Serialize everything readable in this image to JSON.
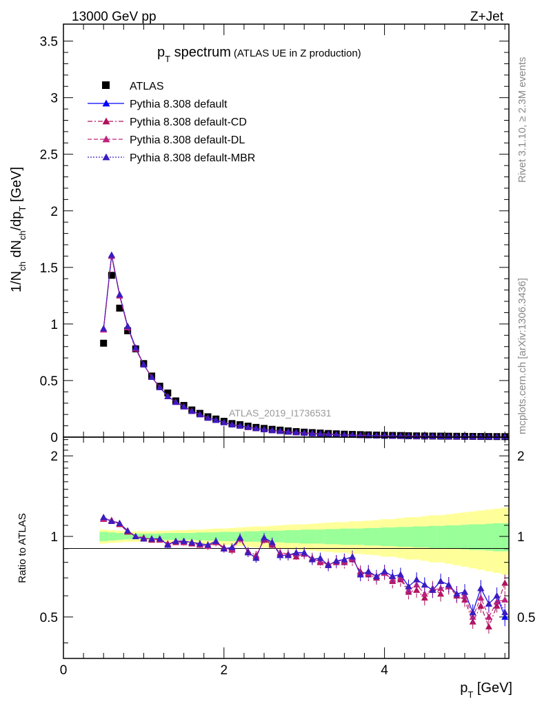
{
  "header": {
    "energy_label": "13000 GeV pp",
    "process_label": "Z+Jet"
  },
  "side_labels": {
    "rivet": "Rivet 3.1.10, ≥ 2.3M events",
    "mcplots": "mcplots.cern.ch [arXiv:1306.3436]"
  },
  "chart_data": [
    {
      "type": "scatter",
      "title_main": "p",
      "title_sub": "T",
      "title_rest": " spectrum",
      "subtitle": "(ATLAS UE in Z production)",
      "watermark": "ATLAS_2019_I1736531",
      "ylabel": "1/N_ch dN_ch/dp_T [GeV]",
      "xlim": [
        0,
        5.55
      ],
      "ylim": [
        0,
        3.65
      ],
      "x_ticks": [
        0,
        2,
        4
      ],
      "y_ticks": [
        0,
        0.5,
        1,
        1.5,
        2,
        2.5,
        3,
        3.5
      ],
      "y_tick_labels": [
        "0",
        "0.5",
        "1",
        "1.5",
        "2",
        "2.5",
        "3",
        "3.5"
      ],
      "legend_position": "top-left",
      "x": [
        0.5,
        0.6,
        0.7,
        0.8,
        0.9,
        1.0,
        1.1,
        1.2,
        1.3,
        1.4,
        1.5,
        1.6,
        1.7,
        1.8,
        1.9,
        2.0,
        2.1,
        2.2,
        2.3,
        2.4,
        2.5,
        2.6,
        2.7,
        2.8,
        2.9,
        3.0,
        3.1,
        3.2,
        3.3,
        3.4,
        3.5,
        3.6,
        3.7,
        3.8,
        3.9,
        4.0,
        4.1,
        4.2,
        4.3,
        4.4,
        4.5,
        4.6,
        4.7,
        4.8,
        4.9,
        5.0,
        5.1,
        5.2,
        5.3,
        5.4,
        5.5
      ],
      "series": [
        {
          "name": "ATLAS",
          "color": "#000000",
          "marker": "square",
          "values": [
            0.83,
            1.43,
            1.14,
            0.94,
            0.78,
            0.65,
            0.54,
            0.45,
            0.39,
            0.32,
            0.28,
            0.24,
            0.21,
            0.18,
            0.16,
            0.14,
            0.12,
            0.11,
            0.097,
            0.086,
            0.077,
            0.069,
            0.062,
            0.055,
            0.049,
            0.044,
            0.04,
            0.036,
            0.032,
            0.029,
            0.026,
            0.024,
            0.022,
            0.02,
            0.018,
            0.016,
            0.015,
            0.014,
            0.012,
            0.011,
            0.01,
            0.0095,
            0.0088,
            0.0081,
            0.0074,
            0.0068,
            0.0063,
            0.0058,
            0.0053,
            0.0049,
            0.0045
          ]
        },
        {
          "name": "Pythia 8.308 default",
          "color": "#0000ff",
          "marker": "triangle",
          "line": "solid",
          "values": [
            0.96,
            1.61,
            1.26,
            0.98,
            0.79,
            0.64,
            0.53,
            0.44,
            0.36,
            0.31,
            0.27,
            0.23,
            0.2,
            0.17,
            0.15,
            0.13,
            0.11,
            0.1,
            0.088,
            0.078,
            0.068,
            0.06,
            0.053,
            0.047,
            0.042,
            0.037,
            0.033,
            0.029,
            0.026,
            0.023,
            0.02,
            0.018,
            0.016,
            0.015,
            0.013,
            0.012,
            0.011,
            0.0099,
            0.0089,
            0.008,
            0.0072,
            0.0066,
            0.0059,
            0.0054,
            0.0049,
            0.0044,
            0.004,
            0.0036,
            0.0033,
            0.003,
            0.0027
          ]
        },
        {
          "name": "Pythia 8.308 default-CD",
          "color": "#b0105c",
          "marker": "triangle",
          "line": "dash-dot",
          "values": [
            0.95,
            1.6,
            1.25,
            0.97,
            0.78,
            0.64,
            0.53,
            0.44,
            0.36,
            0.31,
            0.27,
            0.23,
            0.2,
            0.17,
            0.15,
            0.13,
            0.11,
            0.1,
            0.087,
            0.077,
            0.068,
            0.059,
            0.053,
            0.047,
            0.041,
            0.037,
            0.033,
            0.029,
            0.026,
            0.023,
            0.02,
            0.018,
            0.016,
            0.015,
            0.013,
            0.012,
            0.011,
            0.0098,
            0.0088,
            0.0079,
            0.0071,
            0.0065,
            0.0059,
            0.0053,
            0.0048,
            0.0043,
            0.004,
            0.0036,
            0.0032,
            0.0029,
            0.0027
          ]
        },
        {
          "name": "Pythia 8.308 default-DL",
          "color": "#c0207a",
          "marker": "triangle",
          "line": "dashed",
          "values": [
            0.95,
            1.6,
            1.25,
            0.97,
            0.78,
            0.64,
            0.53,
            0.44,
            0.36,
            0.31,
            0.27,
            0.23,
            0.2,
            0.17,
            0.15,
            0.13,
            0.11,
            0.1,
            0.087,
            0.077,
            0.068,
            0.059,
            0.053,
            0.047,
            0.041,
            0.037,
            0.033,
            0.029,
            0.026,
            0.023,
            0.02,
            0.018,
            0.016,
            0.015,
            0.013,
            0.012,
            0.011,
            0.0098,
            0.0088,
            0.0079,
            0.0071,
            0.0065,
            0.0059,
            0.0053,
            0.0048,
            0.0043,
            0.004,
            0.0036,
            0.0032,
            0.0029,
            0.0027
          ]
        },
        {
          "name": "Pythia 8.308 default-MBR",
          "color": "#3b1cc0",
          "marker": "triangle",
          "line": "dotted",
          "values": [
            0.96,
            1.61,
            1.26,
            0.98,
            0.79,
            0.64,
            0.53,
            0.44,
            0.36,
            0.31,
            0.27,
            0.23,
            0.2,
            0.17,
            0.15,
            0.13,
            0.11,
            0.1,
            0.088,
            0.078,
            0.068,
            0.06,
            0.053,
            0.047,
            0.042,
            0.037,
            0.033,
            0.029,
            0.026,
            0.023,
            0.02,
            0.018,
            0.016,
            0.015,
            0.013,
            0.012,
            0.011,
            0.0099,
            0.0089,
            0.008,
            0.0072,
            0.0066,
            0.0059,
            0.0054,
            0.0049,
            0.0044,
            0.004,
            0.0036,
            0.0033,
            0.003,
            0.0027
          ]
        }
      ]
    },
    {
      "type": "scatter",
      "ylabel": "Ratio to ATLAS",
      "xlabel_main": "p",
      "xlabel_sub": "T",
      "xlabel_rest": " [GeV]",
      "xlim": [
        0,
        5.55
      ],
      "ylim": [
        0.35,
        2.35
      ],
      "log_y": true,
      "x_ticks": [
        0,
        2,
        4
      ],
      "x_tick_labels": [
        "0",
        "2",
        "4"
      ],
      "y_ticks": [
        0.5,
        1,
        2
      ],
      "y_tick_labels": [
        "0.5",
        "1",
        "2"
      ],
      "reference_line": 1,
      "x": [
        0.5,
        0.6,
        0.7,
        0.8,
        0.9,
        1.0,
        1.1,
        1.2,
        1.3,
        1.4,
        1.5,
        1.6,
        1.7,
        1.8,
        1.9,
        2.0,
        2.1,
        2.2,
        2.3,
        2.4,
        2.5,
        2.6,
        2.7,
        2.8,
        2.9,
        3.0,
        3.1,
        3.2,
        3.3,
        3.4,
        3.5,
        3.6,
        3.7,
        3.8,
        3.9,
        4.0,
        4.1,
        4.2,
        4.3,
        4.4,
        4.5,
        4.6,
        4.7,
        4.8,
        4.9,
        5.0,
        5.1,
        5.2,
        5.3,
        5.4,
        5.5
      ],
      "band_inner": [
        0.04,
        0.035,
        0.03,
        0.025,
        0.025,
        0.025,
        0.025,
        0.025,
        0.03,
        0.03,
        0.03,
        0.03,
        0.035,
        0.035,
        0.035,
        0.04,
        0.04,
        0.04,
        0.045,
        0.045,
        0.05,
        0.05,
        0.05,
        0.055,
        0.055,
        0.06,
        0.06,
        0.06,
        0.065,
        0.065,
        0.07,
        0.07,
        0.07,
        0.075,
        0.075,
        0.08,
        0.08,
        0.085,
        0.085,
        0.09,
        0.09,
        0.095,
        0.095,
        0.1,
        0.1,
        0.105,
        0.11,
        0.11,
        0.115,
        0.12,
        0.12
      ],
      "band_outer": [
        0.06,
        0.055,
        0.05,
        0.045,
        0.045,
        0.045,
        0.045,
        0.05,
        0.05,
        0.055,
        0.055,
        0.06,
        0.06,
        0.065,
        0.07,
        0.07,
        0.075,
        0.08,
        0.085,
        0.09,
        0.09,
        0.095,
        0.1,
        0.105,
        0.11,
        0.11,
        0.115,
        0.12,
        0.125,
        0.13,
        0.13,
        0.14,
        0.14,
        0.145,
        0.15,
        0.16,
        0.16,
        0.17,
        0.18,
        0.18,
        0.19,
        0.2,
        0.2,
        0.21,
        0.22,
        0.23,
        0.24,
        0.25,
        0.26,
        0.27,
        0.28
      ],
      "series": [
        {
          "name": "Pythia 8.308 default",
          "color": "#0000ff",
          "line": "solid",
          "values": [
            1.17,
            1.14,
            1.12,
            1.05,
            1.0,
            0.98,
            0.98,
            0.98,
            0.93,
            0.96,
            0.96,
            0.95,
            0.94,
            0.93,
            0.96,
            0.9,
            0.91,
            0.99,
            0.87,
            0.83,
            0.99,
            0.95,
            0.85,
            0.85,
            0.87,
            0.87,
            0.82,
            0.83,
            0.78,
            0.81,
            0.82,
            0.84,
            0.72,
            0.74,
            0.71,
            0.74,
            0.71,
            0.72,
            0.65,
            0.69,
            0.66,
            0.63,
            0.68,
            0.66,
            0.61,
            0.62,
            0.52,
            0.64,
            0.56,
            0.6,
            0.5
          ]
        },
        {
          "name": "Pythia 8.308 default-CD",
          "color": "#b0105c",
          "line": "dash-dot",
          "values": [
            1.16,
            1.15,
            1.11,
            1.04,
            1.0,
            0.99,
            0.97,
            0.98,
            0.94,
            0.95,
            0.95,
            0.94,
            0.93,
            0.92,
            0.95,
            0.91,
            0.89,
            0.98,
            0.88,
            0.85,
            0.97,
            0.93,
            0.87,
            0.86,
            0.84,
            0.86,
            0.83,
            0.8,
            0.79,
            0.8,
            0.8,
            0.82,
            0.74,
            0.72,
            0.7,
            0.73,
            0.68,
            0.69,
            0.62,
            0.63,
            0.59,
            0.64,
            0.61,
            0.65,
            0.6,
            0.58,
            0.48,
            0.55,
            0.46,
            0.55,
            0.67
          ]
        },
        {
          "name": "Pythia 8.308 default-DL",
          "color": "#c0207a",
          "line": "dashed",
          "values": [
            1.16,
            1.15,
            1.12,
            1.05,
            1.0,
            0.98,
            0.98,
            0.97,
            0.94,
            0.96,
            0.95,
            0.95,
            0.93,
            0.92,
            0.95,
            0.9,
            0.9,
            0.98,
            0.87,
            0.84,
            0.98,
            0.94,
            0.86,
            0.85,
            0.86,
            0.86,
            0.82,
            0.81,
            0.78,
            0.81,
            0.81,
            0.83,
            0.73,
            0.73,
            0.71,
            0.73,
            0.69,
            0.7,
            0.63,
            0.66,
            0.61,
            0.63,
            0.64,
            0.65,
            0.61,
            0.6,
            0.5,
            0.59,
            0.5,
            0.57,
            0.58
          ]
        },
        {
          "name": "Pythia 8.308 default-MBR",
          "color": "#3b1cc0",
          "line": "dotted",
          "values": [
            1.18,
            1.14,
            1.12,
            1.05,
            1.0,
            0.98,
            0.98,
            0.98,
            0.93,
            0.96,
            0.96,
            0.95,
            0.94,
            0.93,
            0.96,
            0.9,
            0.91,
            0.99,
            0.87,
            0.83,
            0.99,
            0.95,
            0.85,
            0.85,
            0.87,
            0.87,
            0.82,
            0.83,
            0.78,
            0.81,
            0.82,
            0.84,
            0.72,
            0.74,
            0.71,
            0.74,
            0.71,
            0.72,
            0.65,
            0.69,
            0.66,
            0.63,
            0.68,
            0.66,
            0.61,
            0.62,
            0.52,
            0.64,
            0.56,
            0.6,
            0.52
          ]
        }
      ]
    }
  ]
}
